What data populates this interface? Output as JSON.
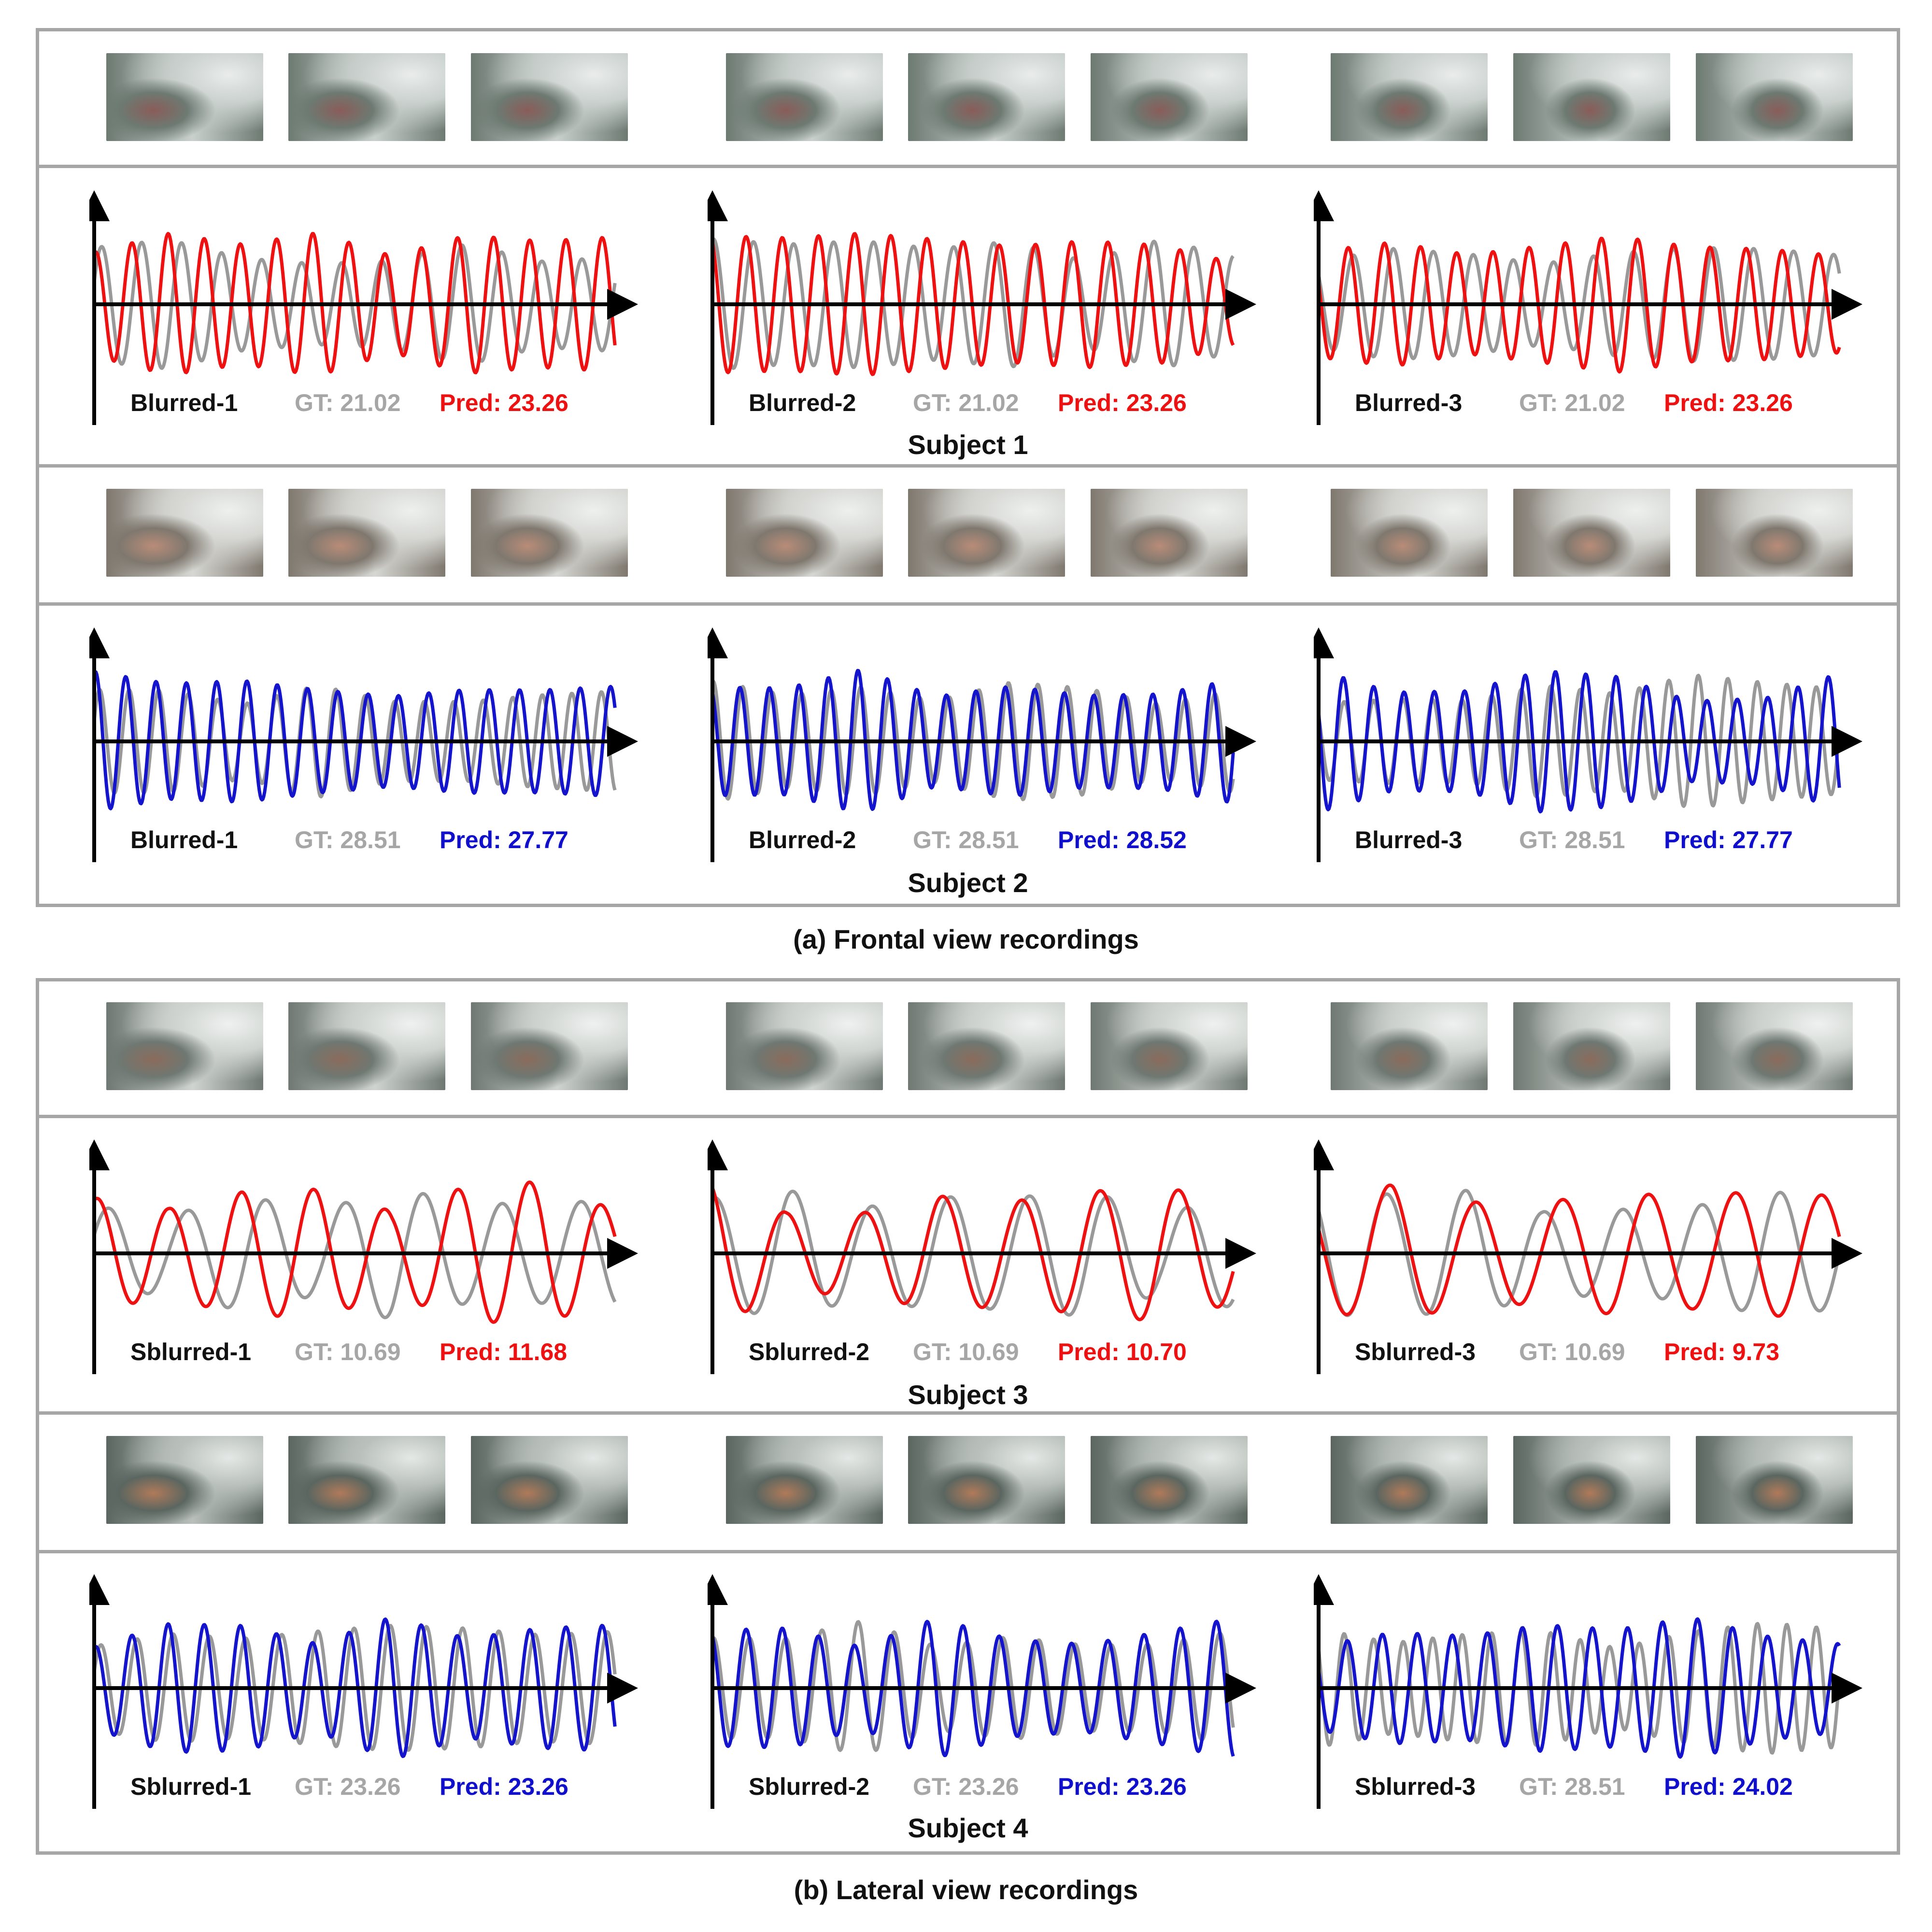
{
  "captions": {
    "a": "(a) Frontal view recordings",
    "b": "(b) Lateral view recordings"
  },
  "colors": {
    "gt": "#999999",
    "pred_red": "#ee1111",
    "pred_blue": "#1414cc",
    "axis": "#000000",
    "frame": "#a6a6a6"
  },
  "subjects": [
    {
      "label": "Subject 1",
      "pred_color": "red",
      "panels": [
        {
          "condition": "Blurred-1",
          "gt": "GT: 21.02",
          "pred": "Pred: 23.26"
        },
        {
          "condition": "Blurred-2",
          "gt": "GT: 21.02",
          "pred": "Pred: 23.26"
        },
        {
          "condition": "Blurred-3",
          "gt": "GT: 21.02",
          "pred": "Pred: 23.26"
        }
      ]
    },
    {
      "label": "Subject 2",
      "pred_color": "blue",
      "panels": [
        {
          "condition": "Blurred-1",
          "gt": "GT: 28.51",
          "pred": "Pred: 27.77"
        },
        {
          "condition": "Blurred-2",
          "gt": "GT: 28.51",
          "pred": "Pred: 28.52"
        },
        {
          "condition": "Blurred-3",
          "gt": "GT: 28.51",
          "pred": "Pred: 27.77"
        }
      ]
    },
    {
      "label": "Subject 3",
      "pred_color": "red",
      "panels": [
        {
          "condition": "Sblurred-1",
          "gt": "GT: 10.69",
          "pred": "Pred: 11.68"
        },
        {
          "condition": "Sblurred-2",
          "gt": "GT: 10.69",
          "pred": "Pred: 10.70"
        },
        {
          "condition": "Sblurred-3",
          "gt": "GT: 10.69",
          "pred": "Pred: 9.73"
        }
      ]
    },
    {
      "label": "Subject 4",
      "pred_color": "blue",
      "panels": [
        {
          "condition": "Sblurred-1",
          "gt": "GT: 23.26",
          "pred": "Pred: 23.26"
        },
        {
          "condition": "Sblurred-2",
          "gt": "GT: 23.26",
          "pred": "Pred: 23.26"
        },
        {
          "condition": "Sblurred-3",
          "gt": "GT: 28.51",
          "pred": "Pred: 24.02"
        }
      ]
    }
  ],
  "chart_data": [
    {
      "type": "line",
      "series": [
        {
          "name": "GT",
          "rate": 21.02
        },
        {
          "name": "Pred",
          "rate": 23.26
        }
      ]
    },
    {
      "type": "line",
      "series": [
        {
          "name": "GT",
          "rate": 21.02
        },
        {
          "name": "Pred",
          "rate": 23.26
        }
      ]
    },
    {
      "type": "line",
      "series": [
        {
          "name": "GT",
          "rate": 21.02
        },
        {
          "name": "Pred",
          "rate": 23.26
        }
      ]
    },
    {
      "type": "line",
      "series": [
        {
          "name": "GT",
          "rate": 28.51
        },
        {
          "name": "Pred",
          "rate": 27.77
        }
      ]
    },
    {
      "type": "line",
      "series": [
        {
          "name": "GT",
          "rate": 28.51
        },
        {
          "name": "Pred",
          "rate": 28.52
        }
      ]
    },
    {
      "type": "line",
      "series": [
        {
          "name": "GT",
          "rate": 28.51
        },
        {
          "name": "Pred",
          "rate": 27.77
        }
      ]
    },
    {
      "type": "line",
      "series": [
        {
          "name": "GT",
          "rate": 10.69
        },
        {
          "name": "Pred",
          "rate": 11.68
        }
      ]
    },
    {
      "type": "line",
      "series": [
        {
          "name": "GT",
          "rate": 10.69
        },
        {
          "name": "Pred",
          "rate": 10.7
        }
      ]
    },
    {
      "type": "line",
      "series": [
        {
          "name": "GT",
          "rate": 10.69
        },
        {
          "name": "Pred",
          "rate": 9.73
        }
      ]
    },
    {
      "type": "line",
      "series": [
        {
          "name": "GT",
          "rate": 23.26
        },
        {
          "name": "Pred",
          "rate": 23.26
        }
      ]
    },
    {
      "type": "line",
      "series": [
        {
          "name": "GT",
          "rate": 23.26
        },
        {
          "name": "Pred",
          "rate": 23.26
        }
      ]
    },
    {
      "type": "line",
      "series": [
        {
          "name": "GT",
          "rate": 28.51
        },
        {
          "name": "Pred",
          "rate": 24.02
        }
      ]
    }
  ]
}
